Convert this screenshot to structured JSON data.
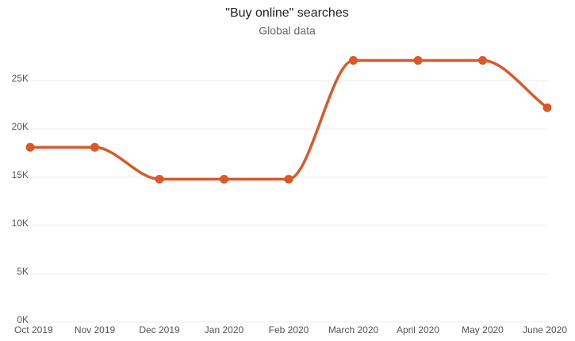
{
  "chart_data": {
    "type": "line",
    "title": "\"Buy online\" searches",
    "subtitle": "Global data",
    "categories": [
      "Oct 2019",
      "Nov 2019",
      "Dec 2019",
      "Jan 2020",
      "Feb 2020",
      "March 2020",
      "April 2020",
      "May 2020",
      "June 2020"
    ],
    "series": [
      {
        "name": "Searches",
        "color": "#d9592b",
        "values": [
          18100,
          18100,
          14800,
          14800,
          14800,
          27100,
          27100,
          27100,
          22200
        ]
      }
    ],
    "ylim": [
      0,
      30000
    ],
    "yticks": [
      {
        "value": 0,
        "label": "0K"
      },
      {
        "value": 5000,
        "label": "5K"
      },
      {
        "value": 10000,
        "label": "10K"
      },
      {
        "value": 15000,
        "label": "15K"
      },
      {
        "value": 20000,
        "label": "20K"
      },
      {
        "value": 25000,
        "label": "25K"
      }
    ],
    "grid": true
  }
}
